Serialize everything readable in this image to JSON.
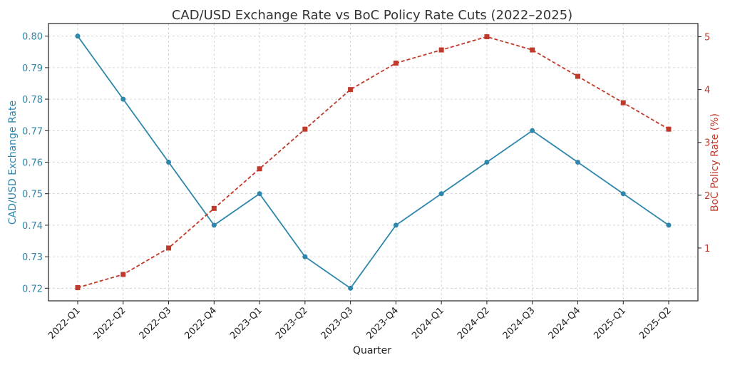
{
  "chart_data": {
    "type": "line",
    "title": "CAD/USD Exchange Rate vs BoC Policy Rate Cuts (2022–2025)",
    "xlabel": "Quarter",
    "categories": [
      "2022-Q1",
      "2022-Q2",
      "2022-Q3",
      "2022-Q4",
      "2023-Q1",
      "2023-Q2",
      "2023-Q3",
      "2023-Q4",
      "2024-Q1",
      "2024-Q2",
      "2024-Q3",
      "2024-Q4",
      "2025-Q1",
      "2025-Q2"
    ],
    "grid": true,
    "y_left": {
      "label": "CAD/USD Exchange Rate",
      "range": [
        0.716,
        0.804
      ],
      "ticks": [
        "0.72",
        "0.73",
        "0.74",
        "0.75",
        "0.76",
        "0.77",
        "0.78",
        "0.79",
        "0.80"
      ],
      "color": "#2e86ab"
    },
    "y_right": {
      "label": "BoC Policy Rate (%)",
      "range": [
        0.0,
        5.25
      ],
      "ticks": [
        "1",
        "2",
        "3",
        "4",
        "5"
      ],
      "color": "#c0392b"
    },
    "series": [
      {
        "axis": "left",
        "values": [
          0.8,
          0.78,
          0.76,
          0.74,
          0.75,
          0.73,
          0.72,
          0.74,
          0.75,
          0.76,
          0.77,
          0.76,
          0.75,
          0.74
        ],
        "color": "#2e86ab",
        "style": "solid",
        "marker": "circle"
      },
      {
        "axis": "right",
        "values": [
          0.25,
          0.5,
          1.0,
          1.75,
          2.5,
          3.25,
          4.0,
          4.5,
          4.75,
          5.0,
          4.75,
          4.25,
          3.75,
          3.25
        ],
        "color": "#c0392b",
        "style": "dashed",
        "marker": "square"
      }
    ]
  }
}
